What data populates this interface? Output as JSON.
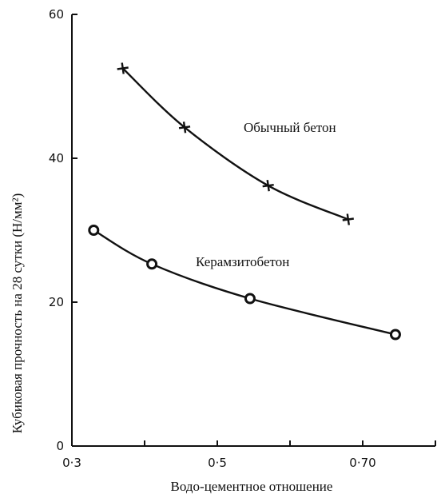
{
  "chart_data": {
    "type": "line",
    "xlabel": "Водо-цементное отношение",
    "ylabel": "Кубиковая прочность на 28 сутки (Н/мм²)",
    "xlim": [
      0.3,
      0.8
    ],
    "ylim": [
      0,
      60
    ],
    "x_ticks": [
      0.3,
      0.4,
      0.5,
      0.6,
      0.7,
      0.8
    ],
    "x_tick_labels": [
      "0·3",
      "",
      "0·5",
      "",
      "0·70",
      ""
    ],
    "y_ticks": [
      0,
      20,
      40,
      60
    ],
    "y_tick_labels": [
      "0",
      "20",
      "40",
      "60"
    ],
    "grid": false,
    "series": [
      {
        "name": "Обычный бетон",
        "marker": "cross",
        "x": [
          0.37,
          0.455,
          0.57,
          0.68
        ],
        "y": [
          52.5,
          44.3,
          36.2,
          31.5
        ]
      },
      {
        "name": "Керамзитобетон",
        "marker": "circle",
        "x": [
          0.33,
          0.41,
          0.545,
          0.745
        ],
        "y": [
          30,
          25.3,
          20.5,
          15.5
        ]
      }
    ]
  }
}
